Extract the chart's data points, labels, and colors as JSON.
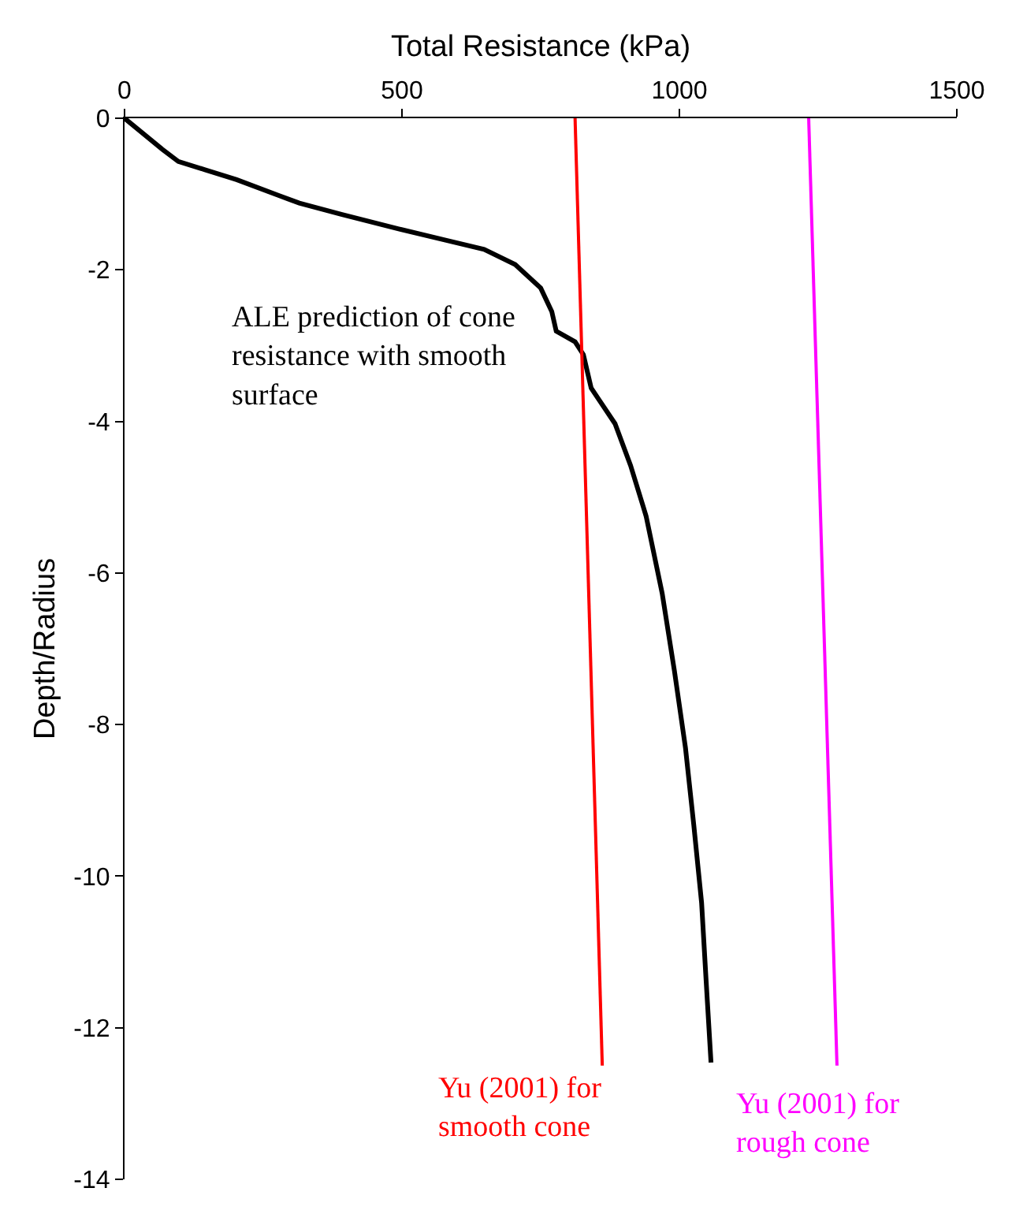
{
  "chart_data": {
    "type": "line",
    "xlabel": "Total Resistance (kPa)",
    "ylabel": "Depth/Radius",
    "xlim": [
      0,
      1500
    ],
    "xticks": [
      0,
      500,
      1000,
      1500
    ],
    "ylim": [
      -14,
      0
    ],
    "yticks": [
      -14,
      -12,
      -10,
      -8,
      -6,
      -4,
      -2,
      0
    ],
    "grid": false,
    "legend": false,
    "marker": "none",
    "line_style": "solid",
    "series": [
      {
        "name": "ALE prediction of cone\nresistance with smooth\nsurface",
        "color": "#000000",
        "x": [
          0,
          68,
          97,
          145,
          202,
          278,
          315,
          392,
          494,
          580,
          648,
          704,
          750,
          770,
          778,
          812,
          827,
          841,
          884,
          912,
          935,
          940,
          969,
          991,
          1011,
          1026,
          1040,
          1048,
          1057
        ],
        "values": [
          0,
          -0.41,
          -0.57,
          -0.68,
          -0.81,
          -1.02,
          -1.12,
          -1.27,
          -1.46,
          -1.61,
          -1.73,
          -1.93,
          -2.24,
          -2.55,
          -2.81,
          -2.95,
          -3.12,
          -3.56,
          -4.03,
          -4.58,
          -5.13,
          -5.25,
          -6.27,
          -7.29,
          -8.31,
          -9.33,
          -10.35,
          -11.36,
          -12.46
        ]
      },
      {
        "name": "Yu (2001) for\nsmooth cone",
        "color": "#ff0000",
        "x": [
          812,
          861
        ],
        "values": [
          0,
          -12.5
        ]
      },
      {
        "name": "Yu (2001) for\nrough cone",
        "color": "#ff00ff",
        "x": [
          1233,
          1284
        ],
        "values": [
          0,
          -12.5
        ]
      }
    ]
  }
}
